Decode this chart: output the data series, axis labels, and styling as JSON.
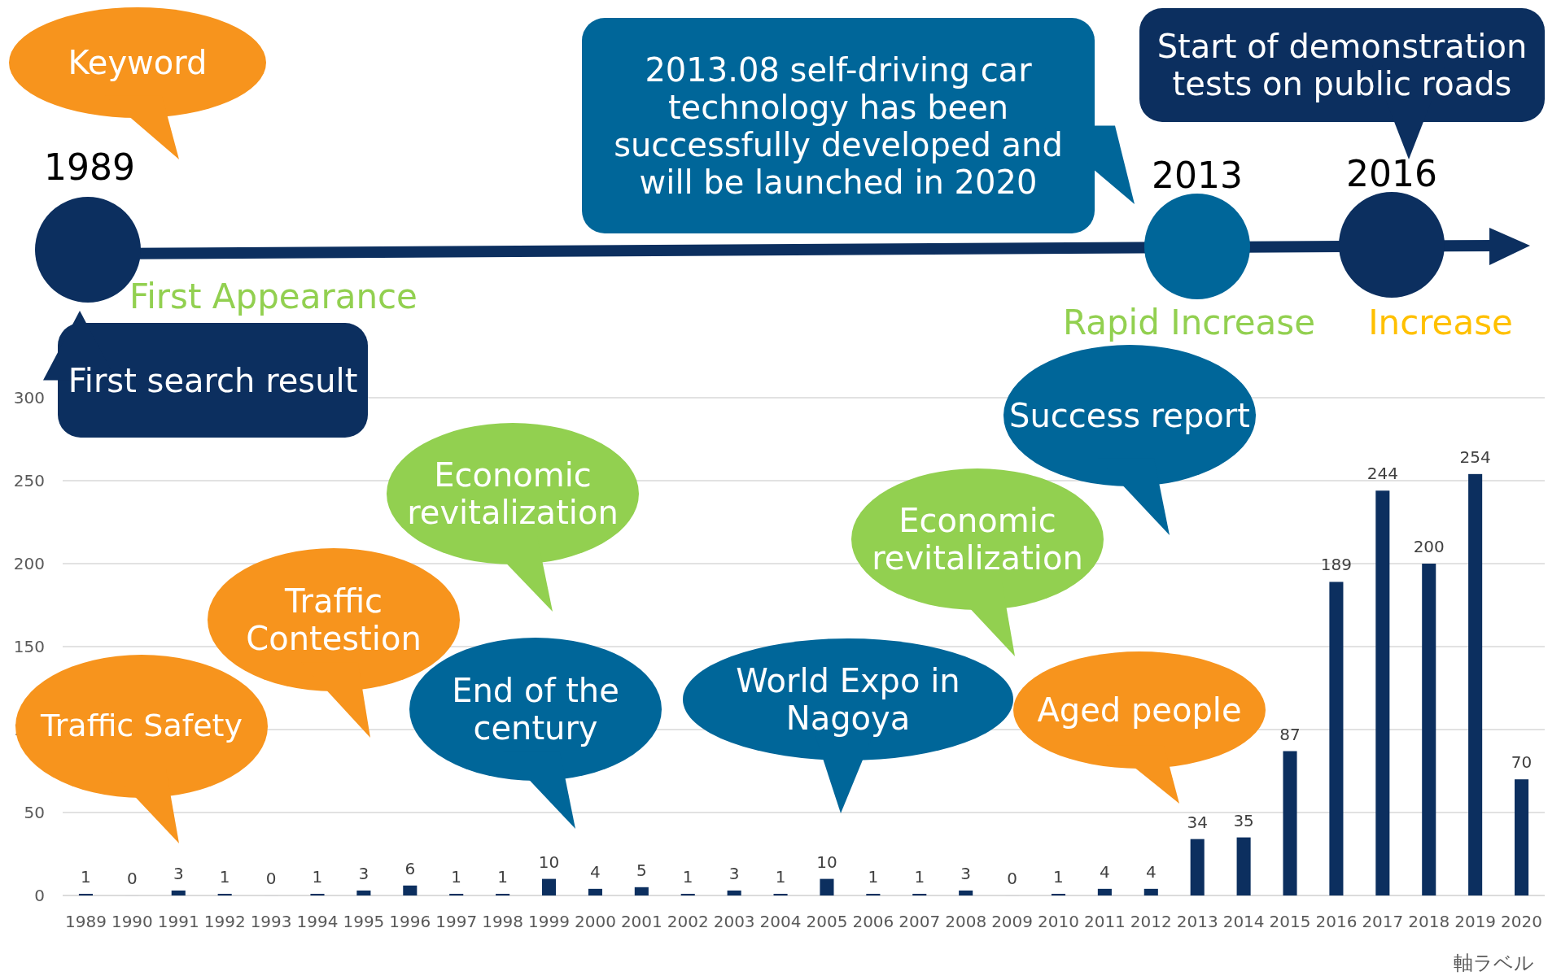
{
  "chart_data": {
    "type": "bar",
    "categories": [
      "1989",
      "1990",
      "1991",
      "1992",
      "1993",
      "1994",
      "1995",
      "1996",
      "1997",
      "1998",
      "1999",
      "2000",
      "2001",
      "2002",
      "2003",
      "2004",
      "2005",
      "2006",
      "2007",
      "2008",
      "2009",
      "2010",
      "2011",
      "2012",
      "2013",
      "2014",
      "2015",
      "2016",
      "2017",
      "2018",
      "2019",
      "2020"
    ],
    "values": [
      1,
      0,
      3,
      1,
      0,
      1,
      3,
      6,
      1,
      1,
      10,
      4,
      5,
      1,
      3,
      1,
      10,
      1,
      1,
      3,
      0,
      1,
      4,
      4,
      34,
      35,
      87,
      189,
      244,
      200,
      254,
      70
    ],
    "color": "#0c2f5f",
    "ylim": [
      0,
      300
    ],
    "yticks": [
      0,
      50,
      100,
      150,
      200,
      250,
      300
    ],
    "grid": "y",
    "data_labels": true,
    "xlabel": "軸ラベル",
    "annotations": [
      "Keyword",
      "1989",
      "First Appearance",
      "First search result",
      "2013.08 self-driving car technology has been successfully developed and will be launched in 2020",
      "2013",
      "2016",
      "Start of demonstration tests on public roads",
      "Rapid Increase",
      "Increase",
      "Success report",
      "Economic revitalization",
      "Economic revitalization",
      "Traffic Contestion",
      "Traffic Safety",
      "End of the century",
      "World Expo in Nagoya",
      "Aged people"
    ]
  }
}
